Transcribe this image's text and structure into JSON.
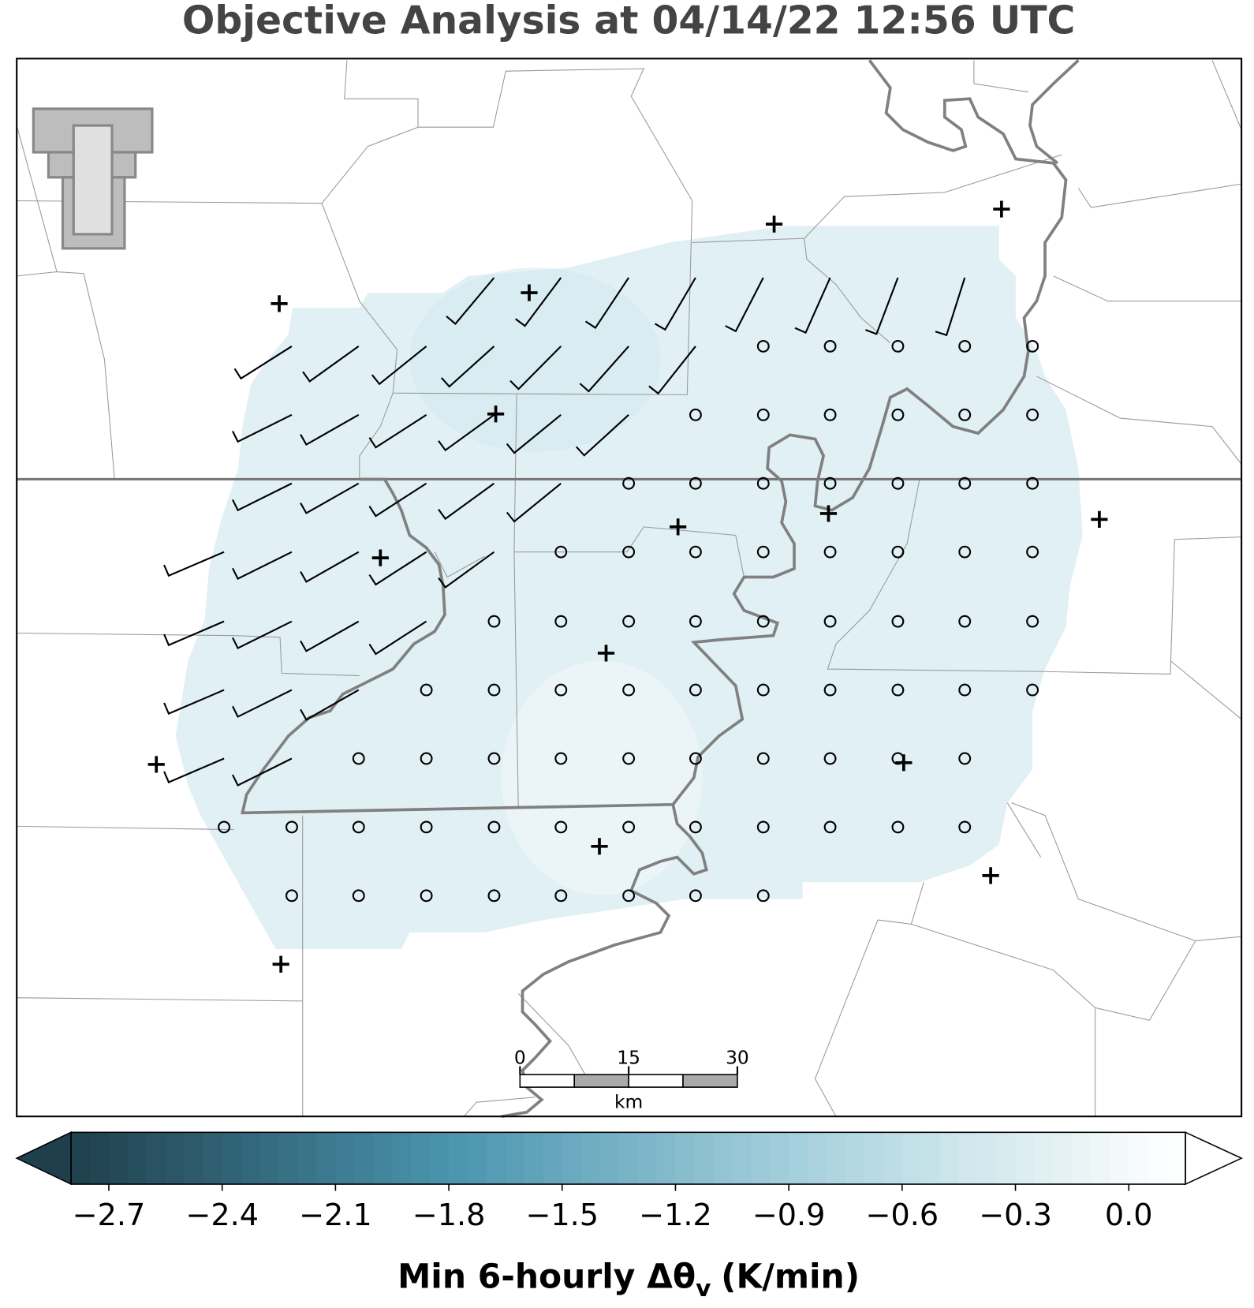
{
  "title": "Objective Analysis at 04/14/22 12:56 UTC",
  "colorbar": {
    "clim": [
      -2.8,
      0.15
    ],
    "ticks": [
      {
        "value": -2.7,
        "label": "−2.7"
      },
      {
        "value": -2.4,
        "label": "−2.4"
      },
      {
        "value": -2.1,
        "label": "−2.1"
      },
      {
        "value": -1.8,
        "label": "−1.8"
      },
      {
        "value": -1.5,
        "label": "−1.5"
      },
      {
        "value": -1.2,
        "label": "−1.2"
      },
      {
        "value": -0.9,
        "label": "−0.9"
      },
      {
        "value": -0.6,
        "label": "−0.6"
      },
      {
        "value": -0.3,
        "label": "−0.3"
      },
      {
        "value": 0,
        "label": "0.0"
      }
    ],
    "label": {
      "main": "Min 6-hourly Δθ",
      "sub": "v",
      "unit": "(K/min)"
    }
  },
  "scale_bar": {
    "ticks": [
      0,
      15,
      30
    ],
    "unit": "km"
  }
}
